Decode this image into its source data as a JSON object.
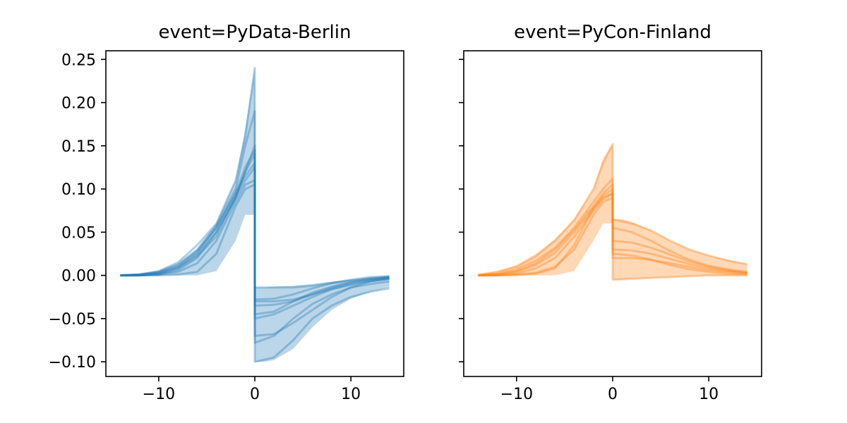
{
  "chart_data": [
    {
      "type": "line",
      "title": "event=PyData-Berlin",
      "xlim": [
        -15.5,
        15.5
      ],
      "ylim": [
        -0.117,
        0.26
      ],
      "xticks": [
        -10,
        0,
        10
      ],
      "xtick_labels": [
        "−10",
        "0",
        "10"
      ],
      "yticks": [
        0.25,
        0.2,
        0.15,
        0.1,
        0.05,
        0.0,
        -0.05,
        -0.1
      ],
      "ytick_labels": [
        "0.25",
        "0.20",
        "0.15",
        "0.10",
        "0.05",
        "0.00",
        "−0.05",
        "−0.10"
      ],
      "color": "#1f77b4",
      "band": {
        "x": [
          -14,
          -12,
          -10,
          -8,
          -6,
          -4,
          -2,
          -1,
          0,
          0,
          1,
          2,
          4,
          6,
          8,
          10,
          12,
          14
        ],
        "upper": [
          0.0,
          0.001,
          0.004,
          0.012,
          0.03,
          0.06,
          0.11,
          0.17,
          0.24,
          -0.014,
          -0.014,
          -0.013,
          -0.012,
          -0.01,
          -0.007,
          -0.005,
          -0.002,
          0.0
        ],
        "lower": [
          0.0,
          0.0,
          0.0,
          0.0,
          0.0,
          0.005,
          0.04,
          0.07,
          0.07,
          -0.1,
          -0.1,
          -0.098,
          -0.085,
          -0.06,
          -0.04,
          -0.027,
          -0.019,
          -0.014
        ]
      },
      "series": [
        {
          "x": [
            -14,
            -12,
            -10,
            -8,
            -6,
            -4,
            -2,
            -1,
            0,
            0,
            2,
            4,
            6,
            8,
            10,
            12,
            14
          ],
          "y": [
            0,
            0.001,
            0.005,
            0.015,
            0.035,
            0.06,
            0.11,
            0.16,
            0.24,
            -0.1,
            -0.095,
            -0.075,
            -0.05,
            -0.035,
            -0.025,
            -0.019,
            -0.015
          ]
        },
        {
          "x": [
            -14,
            -12,
            -10,
            -8,
            -6,
            -4,
            -2,
            -1,
            0,
            0,
            2,
            4,
            6,
            8,
            10,
            12,
            14
          ],
          "y": [
            0,
            0.001,
            0.004,
            0.013,
            0.03,
            0.058,
            0.1,
            0.15,
            0.19,
            -0.078,
            -0.07,
            -0.05,
            -0.033,
            -0.022,
            -0.014,
            -0.01,
            -0.007
          ]
        },
        {
          "x": [
            -14,
            -12,
            -10,
            -8,
            -6,
            -4,
            -2,
            -1,
            0,
            0,
            2,
            4,
            6,
            8,
            10,
            12,
            14
          ],
          "y": [
            0,
            0.0,
            0.002,
            0.008,
            0.022,
            0.045,
            0.09,
            0.12,
            0.15,
            -0.07,
            -0.068,
            -0.055,
            -0.04,
            -0.025,
            -0.014,
            -0.007,
            -0.004
          ]
        },
        {
          "x": [
            -14,
            -12,
            -10,
            -8,
            -6,
            -4,
            -2,
            -1,
            0,
            0,
            2,
            4,
            6,
            8,
            10,
            12,
            14
          ],
          "y": [
            0,
            0.0,
            0.002,
            0.009,
            0.024,
            0.05,
            0.09,
            0.12,
            0.14,
            -0.05,
            -0.045,
            -0.035,
            -0.025,
            -0.016,
            -0.01,
            -0.006,
            -0.003
          ]
        },
        {
          "x": [
            -14,
            -12,
            -10,
            -8,
            -6,
            -4,
            -2,
            -1,
            0,
            0,
            2,
            4,
            6,
            8,
            10,
            12,
            14
          ],
          "y": [
            0,
            0.001,
            0.003,
            0.01,
            0.026,
            0.055,
            0.095,
            0.115,
            0.13,
            -0.045,
            -0.042,
            -0.03,
            -0.02,
            -0.013,
            -0.008,
            -0.005,
            -0.003
          ]
        },
        {
          "x": [
            -14,
            -12,
            -10,
            -8,
            -6,
            -4,
            -2,
            -1,
            0,
            0,
            2,
            4,
            6,
            8,
            10,
            12,
            14
          ],
          "y": [
            0,
            0.0,
            0.001,
            0.004,
            0.014,
            0.04,
            0.085,
            0.105,
            0.11,
            -0.035,
            -0.034,
            -0.03,
            -0.022,
            -0.014,
            -0.008,
            -0.004,
            -0.002
          ]
        },
        {
          "x": [
            -14,
            -12,
            -10,
            -8,
            -6,
            -4,
            -2,
            -1,
            0,
            0,
            2,
            4,
            6,
            8,
            10,
            12,
            14
          ],
          "y": [
            0,
            0.0,
            0.0,
            0.001,
            0.004,
            0.025,
            0.08,
            0.1,
            0.105,
            -0.03,
            -0.03,
            -0.028,
            -0.022,
            -0.016,
            -0.011,
            -0.007,
            -0.004
          ]
        },
        {
          "x": [
            -14,
            -12,
            -10,
            -8,
            -6,
            -4,
            -2,
            -1,
            0,
            0,
            2,
            4,
            6,
            8,
            10,
            12,
            14
          ],
          "y": [
            0,
            0.0,
            0.001,
            0.006,
            0.02,
            0.05,
            0.09,
            0.11,
            0.125,
            -0.028,
            -0.027,
            -0.022,
            -0.015,
            -0.009,
            -0.005,
            -0.002,
            -0.001
          ]
        },
        {
          "x": [
            -14,
            -12,
            -10,
            -8,
            -6,
            -4,
            -2,
            -1,
            0,
            0,
            2,
            4,
            6,
            8,
            10,
            12,
            14
          ],
          "y": [
            0,
            0.001,
            0.004,
            0.012,
            0.028,
            0.055,
            0.095,
            0.125,
            0.145,
            -0.014,
            -0.014,
            -0.014,
            -0.012,
            -0.009,
            -0.006,
            -0.004,
            -0.002
          ]
        }
      ]
    },
    {
      "type": "line",
      "title": "event=PyCon-Finland",
      "xlim": [
        -15.5,
        15.5
      ],
      "ylim": [
        -0.117,
        0.26
      ],
      "xticks": [
        -10,
        0,
        10
      ],
      "xtick_labels": [
        "−10",
        "0",
        "10"
      ],
      "yticks": [
        0.25,
        0.2,
        0.15,
        0.1,
        0.05,
        0.0,
        -0.05,
        -0.1
      ],
      "ytick_labels": [],
      "color": "#ff7f0e",
      "band": {
        "x": [
          -14,
          -12,
          -10,
          -8,
          -6,
          -4,
          -2,
          -1,
          0,
          0,
          1,
          2,
          4,
          6,
          8,
          10,
          12,
          14
        ],
        "upper": [
          0.001,
          0.005,
          0.012,
          0.025,
          0.042,
          0.065,
          0.1,
          0.135,
          0.152,
          0.065,
          0.065,
          0.062,
          0.052,
          0.04,
          0.03,
          0.023,
          0.018,
          0.013
        ],
        "lower": [
          0.0,
          0.0,
          0.0,
          0.0,
          0.0,
          0.005,
          0.04,
          0.06,
          0.06,
          -0.005,
          -0.005,
          -0.004,
          -0.003,
          -0.002,
          -0.001,
          0.0,
          0.0,
          0.0
        ]
      },
      "series": [
        {
          "x": [
            -14,
            -12,
            -10,
            -8,
            -6,
            -4,
            -2,
            -1,
            0,
            0,
            2,
            4,
            6,
            8,
            10,
            12,
            14
          ],
          "y": [
            0.001,
            0.004,
            0.01,
            0.022,
            0.04,
            0.064,
            0.1,
            0.13,
            0.152,
            0.065,
            0.06,
            0.052,
            0.04,
            0.03,
            0.023,
            0.017,
            0.013
          ]
        },
        {
          "x": [
            -14,
            -12,
            -10,
            -8,
            -6,
            -4,
            -2,
            -1,
            0,
            0,
            2,
            4,
            6,
            8,
            10,
            12,
            14
          ],
          "y": [
            0,
            0.002,
            0.007,
            0.017,
            0.032,
            0.055,
            0.085,
            0.1,
            0.112,
            0.055,
            0.05,
            0.04,
            0.028,
            0.018,
            0.011,
            0.007,
            0.004
          ]
        },
        {
          "x": [
            -14,
            -12,
            -10,
            -8,
            -6,
            -4,
            -2,
            -1,
            0,
            0,
            2,
            4,
            6,
            8,
            10,
            12,
            14
          ],
          "y": [
            0,
            0.001,
            0.005,
            0.014,
            0.03,
            0.053,
            0.08,
            0.095,
            0.105,
            0.04,
            0.038,
            0.032,
            0.024,
            0.016,
            0.01,
            0.006,
            0.003
          ]
        },
        {
          "x": [
            -14,
            -12,
            -10,
            -8,
            -6,
            -4,
            -2,
            -1,
            0,
            0,
            2,
            4,
            6,
            8,
            10,
            12,
            14
          ],
          "y": [
            0,
            0.001,
            0.004,
            0.012,
            0.026,
            0.05,
            0.078,
            0.092,
            0.1,
            0.03,
            0.029,
            0.025,
            0.019,
            0.013,
            0.008,
            0.005,
            0.003
          ]
        },
        {
          "x": [
            -14,
            -12,
            -10,
            -8,
            -6,
            -4,
            -2,
            -1,
            0,
            0,
            2,
            4,
            6,
            8,
            10,
            12,
            14
          ],
          "y": [
            0,
            0.0,
            0.002,
            0.008,
            0.02,
            0.045,
            0.075,
            0.088,
            0.095,
            0.025,
            0.023,
            0.018,
            0.012,
            0.007,
            0.004,
            0.002,
            0.001
          ]
        },
        {
          "x": [
            -14,
            -12,
            -10,
            -8,
            -6,
            -4,
            -2,
            -1,
            0,
            0,
            2,
            4,
            6,
            8,
            10,
            12,
            14
          ],
          "y": [
            0,
            0.0,
            0.001,
            0.003,
            0.01,
            0.03,
            0.07,
            0.085,
            0.09,
            0.02,
            0.02,
            0.018,
            0.014,
            0.01,
            0.006,
            0.004,
            0.002
          ]
        },
        {
          "x": [
            -14,
            -12,
            -10,
            -8,
            -6,
            -4,
            -2,
            -1,
            0,
            0,
            2,
            4,
            6,
            8,
            10,
            12,
            14
          ],
          "y": [
            0,
            0.0,
            0.0,
            0.002,
            0.008,
            0.035,
            0.078,
            0.09,
            0.095,
            -0.005,
            -0.004,
            -0.003,
            -0.002,
            -0.001,
            0.0,
            0.0,
            0.0
          ]
        }
      ]
    }
  ]
}
